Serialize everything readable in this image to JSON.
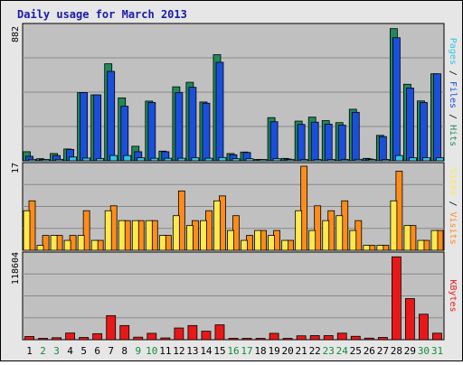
{
  "chart_data": [
    {
      "type": "bar",
      "panel": "hits",
      "title": "Daily usage for March 2013",
      "ytick_label": "882",
      "ylim": [
        0,
        882
      ],
      "categories": [
        "1",
        "2",
        "3",
        "4",
        "5",
        "6",
        "7",
        "8",
        "9",
        "10",
        "11",
        "12",
        "13",
        "14",
        "15",
        "16",
        "17",
        "18",
        "19",
        "20",
        "21",
        "22",
        "23",
        "24",
        "25",
        "26",
        "27",
        "28",
        "29",
        "30",
        "31"
      ],
      "weekend_days": [
        "2",
        "3",
        "9",
        "10",
        "16",
        "17",
        "23",
        "24",
        "30",
        "31"
      ],
      "axis_label_parts": [
        "Pages",
        " / ",
        "Files",
        " / ",
        "Hits"
      ],
      "series": [
        {
          "name": "Hits",
          "color": "#1f8a5a",
          "values": [
            60,
            14,
            48,
            78,
            450,
            435,
            640,
            415,
            96,
            394,
            64,
            488,
            518,
            388,
            700,
            48,
            58,
            8,
            285,
            16,
            262,
            288,
            265,
            252,
            340,
            16,
            168,
            872,
            505,
            395,
            574
          ]
        },
        {
          "name": "Files",
          "color": "#1a4fdb",
          "values": [
            30,
            8,
            35,
            75,
            450,
            435,
            590,
            360,
            60,
            385,
            60,
            450,
            485,
            380,
            650,
            40,
            55,
            6,
            258,
            12,
            240,
            255,
            242,
            235,
            320,
            12,
            160,
            812,
            480,
            385,
            574
          ]
        },
        {
          "name": "Pages",
          "color": "#33c4e8",
          "values": [
            10,
            5,
            10,
            25,
            18,
            15,
            35,
            35,
            20,
            17,
            17,
            17,
            20,
            17,
            22,
            14,
            14,
            2,
            14,
            2,
            9,
            9,
            9,
            9,
            10,
            3,
            8,
            35,
            20,
            20,
            20
          ]
        }
      ]
    },
    {
      "type": "bar",
      "panel": "visits",
      "ytick_label": "17",
      "ylim": [
        0,
        17
      ],
      "categories": [
        "1",
        "2",
        "3",
        "4",
        "5",
        "6",
        "7",
        "8",
        "9",
        "10",
        "11",
        "12",
        "13",
        "14",
        "15",
        "16",
        "17",
        "18",
        "19",
        "20",
        "21",
        "22",
        "23",
        "24",
        "25",
        "26",
        "27",
        "28",
        "29",
        "30",
        "31"
      ],
      "axis_label_parts": [
        "Sites",
        " / ",
        "Visits"
      ],
      "series": [
        {
          "name": "Visits",
          "color": "#ff8c1a",
          "values": [
            10,
            3,
            3,
            3,
            8,
            2,
            9,
            6,
            6,
            6,
            3,
            12,
            6,
            8,
            11,
            7,
            3,
            4,
            4,
            2,
            17,
            9,
            8,
            10,
            6,
            1,
            1,
            16,
            5,
            2,
            4
          ]
        },
        {
          "name": "Sites",
          "color": "#ffe84d",
          "values": [
            8,
            1,
            3,
            2,
            3,
            2,
            8,
            6,
            6,
            6,
            3,
            7,
            5,
            6,
            10,
            4,
            2,
            4,
            3,
            2,
            8,
            4,
            6,
            7,
            4,
            1,
            1,
            10,
            5,
            2,
            4
          ]
        }
      ]
    },
    {
      "type": "bar",
      "panel": "kbytes",
      "ytick_label": "118604",
      "ylim": [
        0,
        118604
      ],
      "categories": [
        "1",
        "2",
        "3",
        "4",
        "5",
        "6",
        "7",
        "8",
        "9",
        "10",
        "11",
        "12",
        "13",
        "14",
        "15",
        "16",
        "17",
        "18",
        "19",
        "20",
        "21",
        "22",
        "23",
        "24",
        "25",
        "26",
        "27",
        "28",
        "29",
        "30",
        "31"
      ],
      "axis_label_parts": [
        "KBytes"
      ],
      "series": [
        {
          "name": "KBytes",
          "color": "#e81818",
          "values": [
            4500,
            1300,
            2800,
            9400,
            3200,
            8500,
            34000,
            20000,
            3600,
            9000,
            2500,
            16500,
            20000,
            12000,
            21000,
            2000,
            1500,
            1000,
            9000,
            1200,
            5500,
            5800,
            5800,
            9200,
            4800,
            2200,
            3200,
            117000,
            58000,
            36000,
            9200
          ]
        }
      ]
    }
  ]
}
